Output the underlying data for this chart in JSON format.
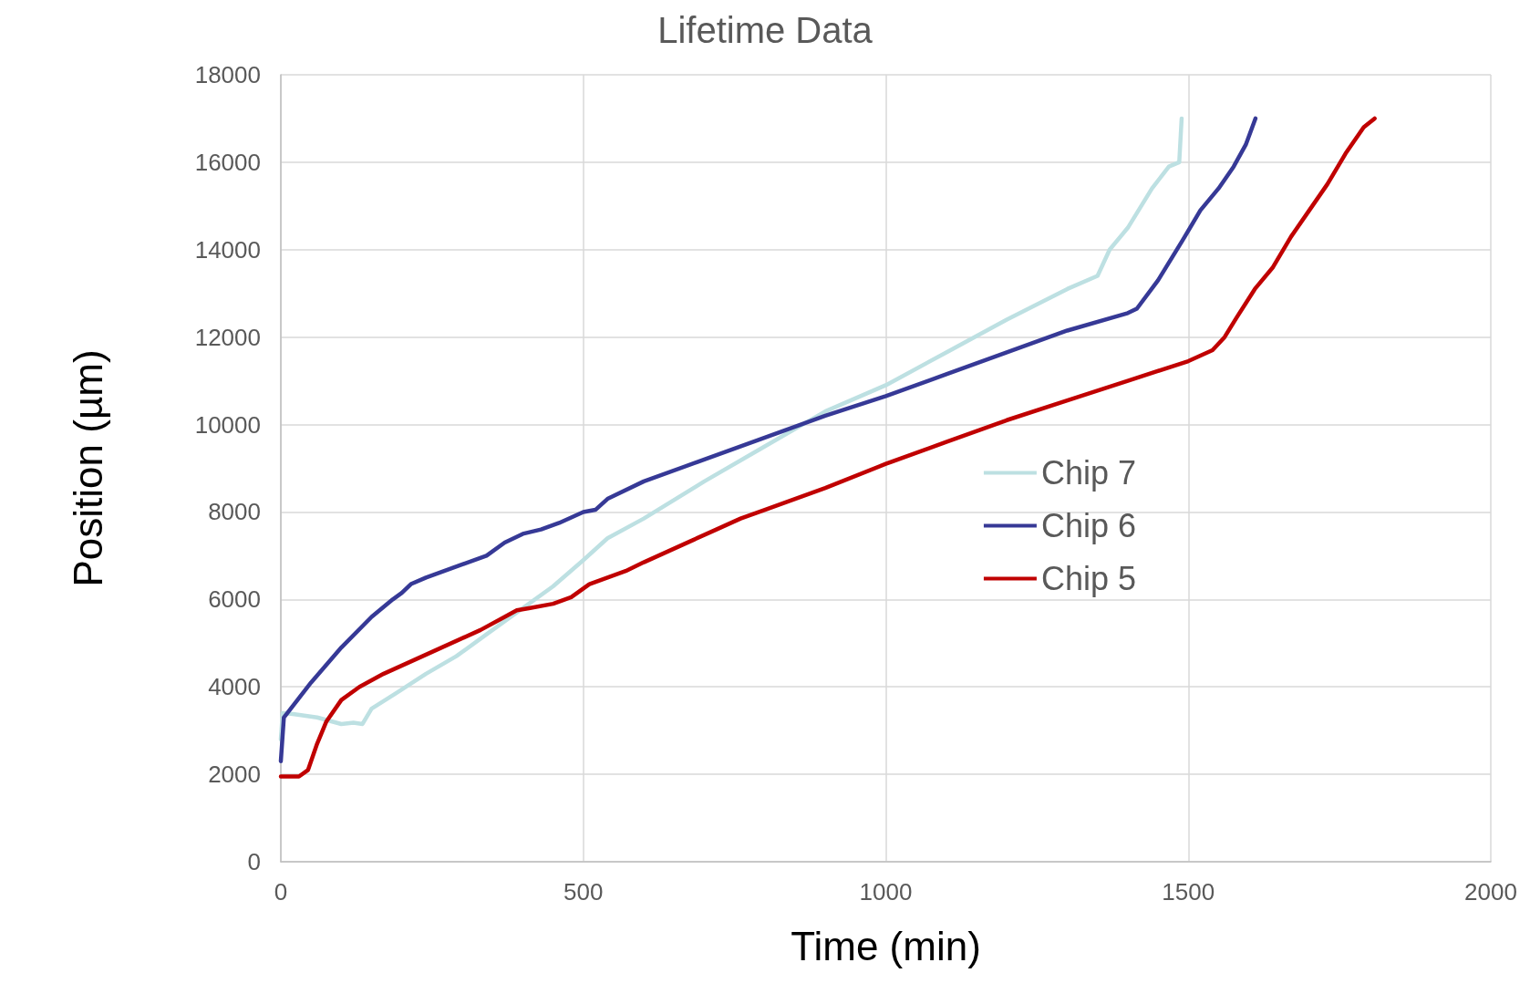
{
  "chart_data": {
    "type": "line",
    "title": "Lifetime Data",
    "xlabel": "Time (min)",
    "ylabel": "Position (µm)",
    "xlim": [
      0,
      2000
    ],
    "xticks": [
      0,
      500,
      1000,
      1500,
      2000
    ],
    "ylim": [
      0,
      18000
    ],
    "yticks": [
      0,
      2000,
      4000,
      6000,
      8000,
      10000,
      12000,
      14000,
      16000,
      18000
    ],
    "grid": true,
    "legend": "right",
    "marker": "none",
    "line_style": "solid",
    "series": [
      {
        "name": "Chip 7",
        "color": "#bde0e2",
        "x": [
          0,
          3,
          20,
          60,
          100,
          120,
          135,
          150,
          190,
          240,
          290,
          340,
          400,
          450,
          500,
          540,
          600,
          700,
          800,
          900,
          1000,
          1100,
          1200,
          1300,
          1350,
          1370,
          1400,
          1440,
          1468,
          1485,
          1489
        ],
        "values": [
          2800,
          3400,
          3380,
          3300,
          3150,
          3180,
          3150,
          3500,
          3850,
          4300,
          4700,
          5200,
          5800,
          6300,
          6900,
          7400,
          7850,
          8700,
          9500,
          10300,
          10900,
          11650,
          12400,
          13100,
          13400,
          14000,
          14500,
          15400,
          15900,
          16000,
          17000
        ]
      },
      {
        "name": "Chip 6",
        "color": "#363996",
        "x": [
          0,
          5,
          50,
          100,
          150,
          185,
          200,
          215,
          240,
          270,
          300,
          340,
          370,
          400,
          430,
          460,
          500,
          520,
          540,
          600,
          700,
          800,
          900,
          1000,
          1100,
          1200,
          1300,
          1400,
          1415,
          1450,
          1490,
          1520,
          1550,
          1575,
          1595,
          1611
        ],
        "values": [
          2300,
          3300,
          4100,
          4900,
          5600,
          6000,
          6150,
          6350,
          6500,
          6650,
          6800,
          7000,
          7300,
          7500,
          7600,
          7750,
          8000,
          8050,
          8300,
          8700,
          9200,
          9700,
          10200,
          10650,
          11150,
          11650,
          12150,
          12550,
          12650,
          13300,
          14200,
          14900,
          15400,
          15900,
          16400,
          17000
        ]
      },
      {
        "name": "Chip 5",
        "color": "#c00000",
        "x": [
          0,
          30,
          45,
          60,
          75,
          100,
          130,
          170,
          250,
          330,
          370,
          390,
          410,
          450,
          480,
          510,
          540,
          570,
          600,
          640,
          680,
          720,
          760,
          800,
          900,
          1000,
          1100,
          1200,
          1300,
          1400,
          1500,
          1540,
          1560,
          1580,
          1610,
          1640,
          1670,
          1700,
          1730,
          1760,
          1790,
          1808
        ],
        "values": [
          1950,
          1950,
          2100,
          2700,
          3200,
          3700,
          4000,
          4300,
          4800,
          5300,
          5600,
          5750,
          5800,
          5900,
          6050,
          6350,
          6500,
          6650,
          6850,
          7100,
          7350,
          7600,
          7850,
          8050,
          8550,
          9100,
          9600,
          10100,
          10550,
          11000,
          11450,
          11700,
          12000,
          12450,
          13100,
          13600,
          14300,
          14900,
          15500,
          16200,
          16800,
          17000
        ]
      }
    ]
  }
}
